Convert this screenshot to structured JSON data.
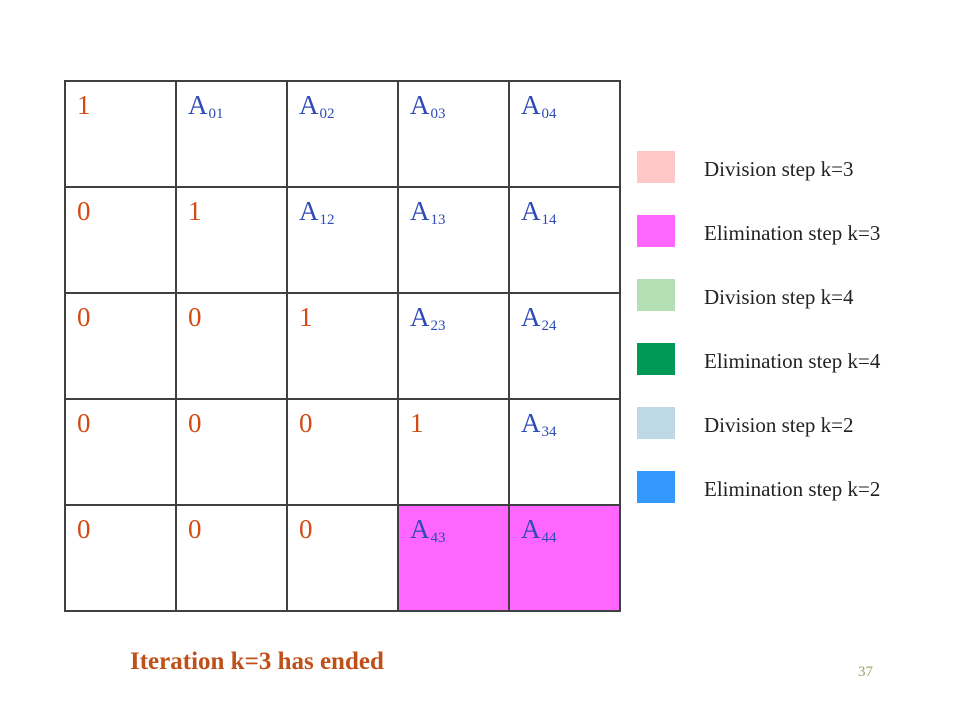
{
  "matrix": {
    "rows": [
      [
        {
          "kind": "num",
          "text": "1"
        },
        {
          "kind": "elem",
          "base": "A",
          "sub": "01"
        },
        {
          "kind": "elem",
          "base": "A",
          "sub": "02"
        },
        {
          "kind": "elem",
          "base": "A",
          "sub": "03"
        },
        {
          "kind": "elem",
          "base": "A",
          "sub": "04"
        }
      ],
      [
        {
          "kind": "num",
          "text": "0"
        },
        {
          "kind": "num",
          "text": "1"
        },
        {
          "kind": "elem",
          "base": "A",
          "sub": "12"
        },
        {
          "kind": "elem",
          "base": "A",
          "sub": "13"
        },
        {
          "kind": "elem",
          "base": "A",
          "sub": "14"
        }
      ],
      [
        {
          "kind": "num",
          "text": "0"
        },
        {
          "kind": "num",
          "text": "0"
        },
        {
          "kind": "num",
          "text": "1"
        },
        {
          "kind": "elem",
          "base": "A",
          "sub": "23"
        },
        {
          "kind": "elem",
          "base": "A",
          "sub": "24"
        }
      ],
      [
        {
          "kind": "num",
          "text": "0"
        },
        {
          "kind": "num",
          "text": "0"
        },
        {
          "kind": "num",
          "text": "0"
        },
        {
          "kind": "num",
          "text": "1"
        },
        {
          "kind": "elem",
          "base": "A",
          "sub": "34"
        }
      ],
      [
        {
          "kind": "num",
          "text": "0"
        },
        {
          "kind": "num",
          "text": "0"
        },
        {
          "kind": "num",
          "text": "0"
        },
        {
          "kind": "elem",
          "base": "A",
          "sub": "43",
          "fill": "#ff66ff"
        },
        {
          "kind": "elem",
          "base": "A",
          "sub": "44",
          "fill": "#ff66ff"
        }
      ]
    ]
  },
  "legend": [
    {
      "label": "Division step k=3",
      "color": "#ffc8c8"
    },
    {
      "label": "Elimination step k=3",
      "color": "#ff66ff"
    },
    {
      "label": "Division step k=4",
      "color": "#b5e0b5"
    },
    {
      "label": "Elimination step k=4",
      "color": "#009955"
    },
    {
      "label": "Division step k=2",
      "color": "#bfd8e6"
    },
    {
      "label": "Elimination step k=2",
      "color": "#3399ff"
    }
  ],
  "caption": "Iteration k=3 has ended",
  "page_number": "37"
}
